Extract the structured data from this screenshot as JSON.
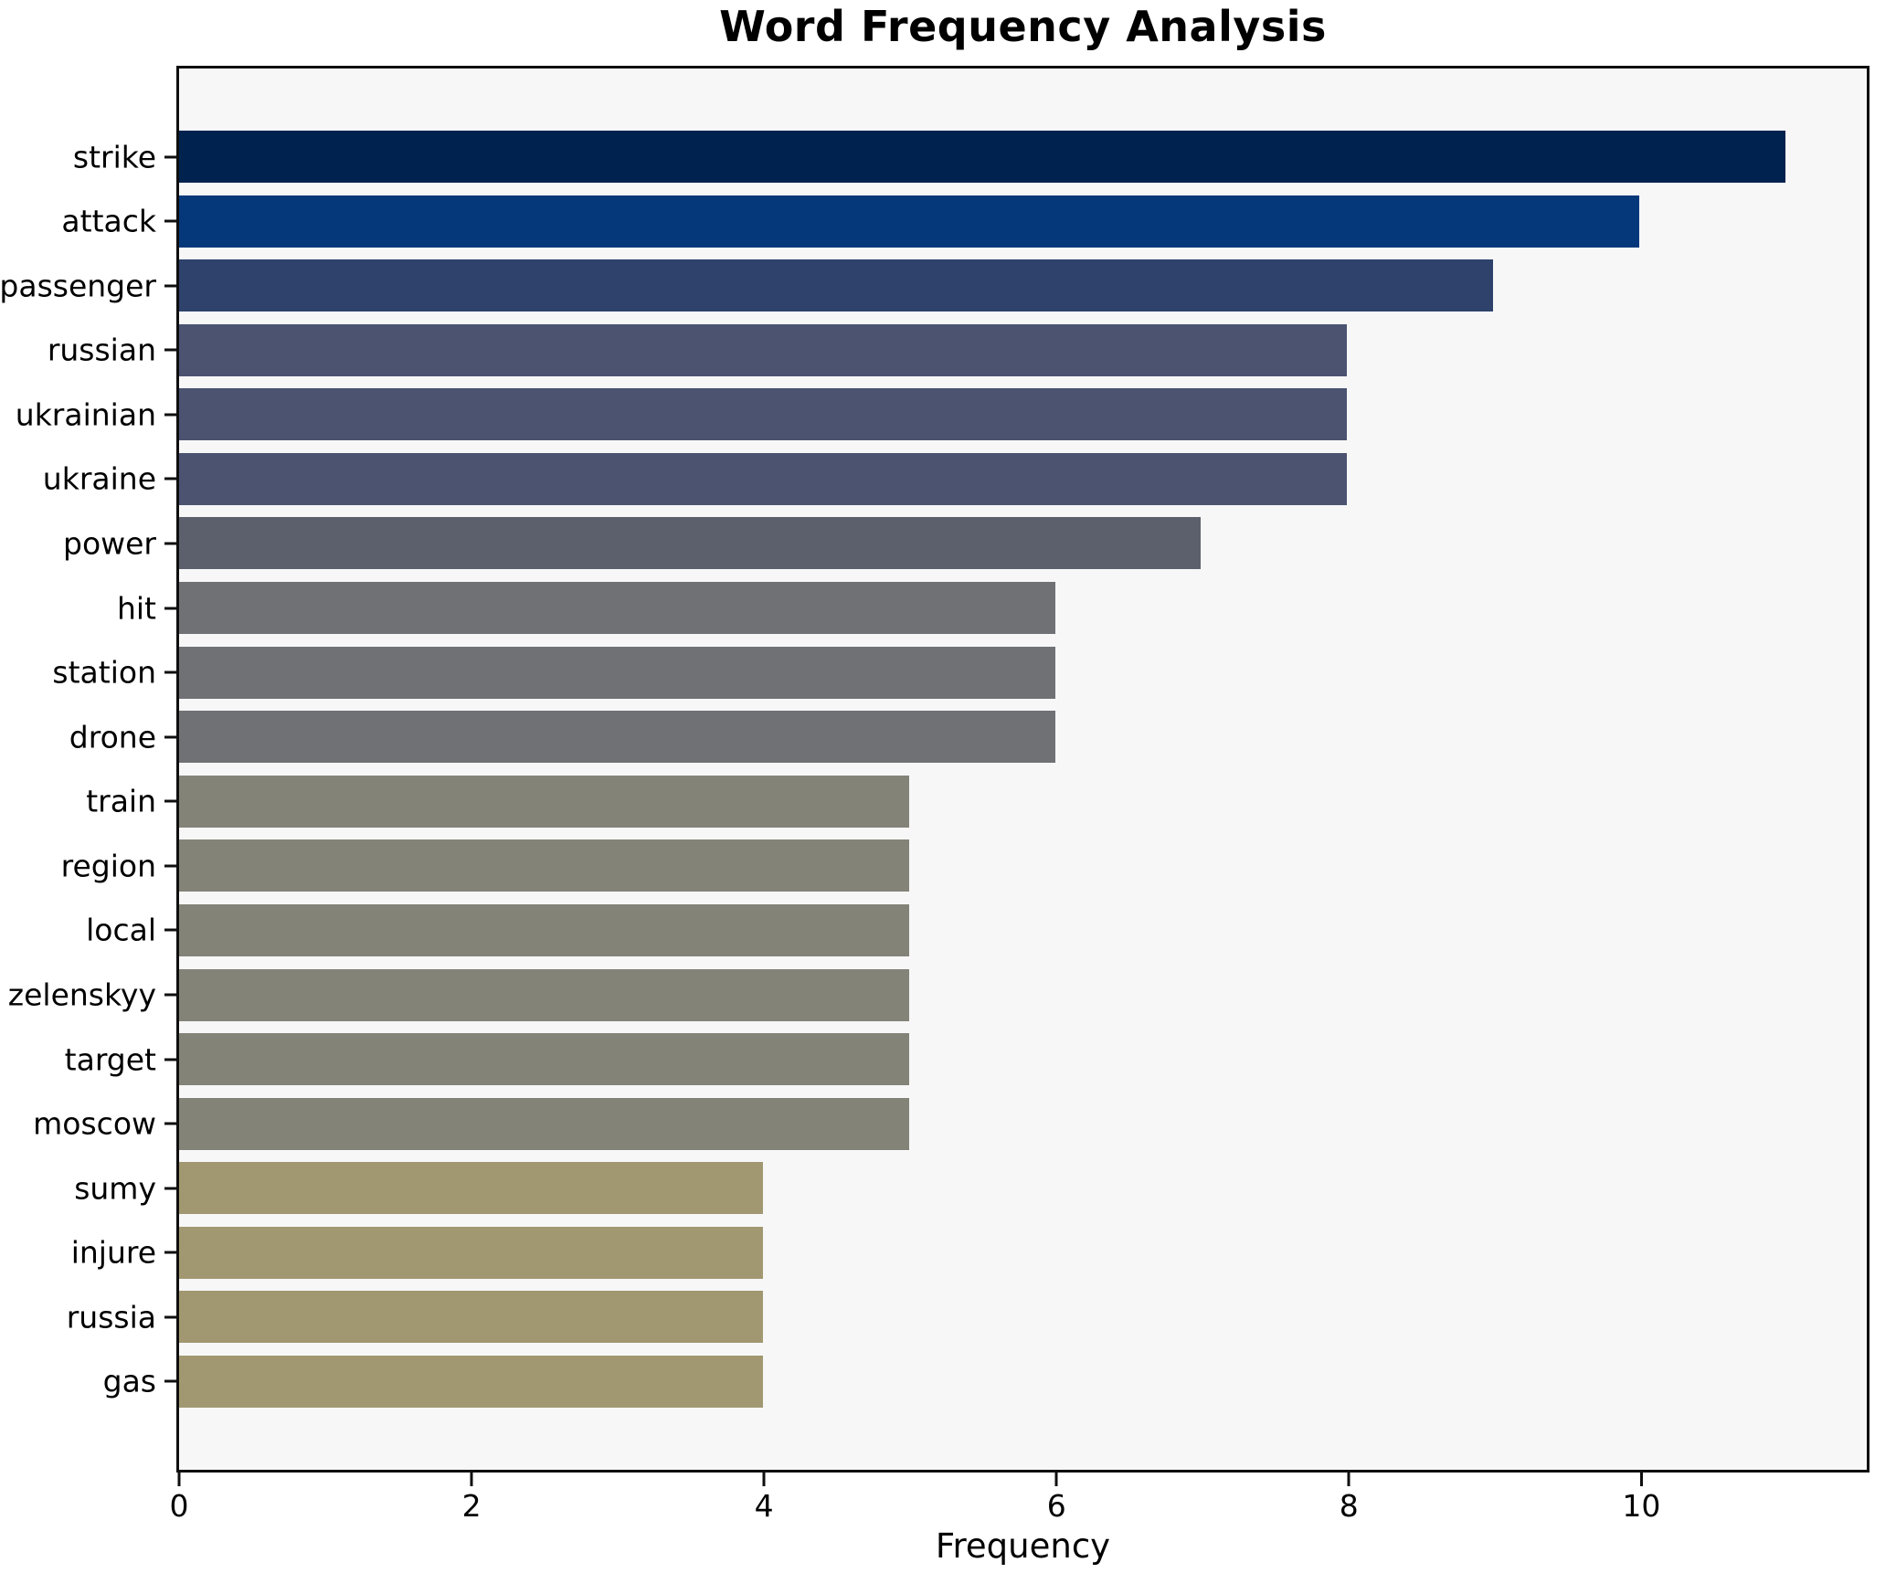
{
  "page": {
    "title": "Word Frequency Analysis"
  },
  "chart_data": {
    "type": "bar",
    "orientation": "horizontal",
    "title": "Word Frequency Analysis",
    "xlabel": "Frequency",
    "ylabel": "",
    "categories": [
      "strike",
      "attack",
      "passenger",
      "russian",
      "ukrainian",
      "ukraine",
      "power",
      "hit",
      "station",
      "drone",
      "train",
      "region",
      "local",
      "zelenskyy",
      "target",
      "moscow",
      "sumy",
      "injure",
      "russia",
      "gas"
    ],
    "values": [
      11,
      10,
      9,
      8,
      8,
      8,
      7,
      6,
      6,
      6,
      5,
      5,
      5,
      5,
      5,
      5,
      4,
      4,
      4,
      4
    ],
    "bar_colors": [
      "#00224e",
      "#04387a",
      "#2f426c",
      "#4b5371",
      "#4b5371",
      "#4b5371",
      "#5b606c",
      "#6f7174",
      "#6f7174",
      "#6f7174",
      "#848378",
      "#848378",
      "#848378",
      "#848378",
      "#848378",
      "#848378",
      "#a19872",
      "#a19872",
      "#a19872",
      "#a19872"
    ],
    "xticks": [
      0,
      2,
      4,
      6,
      8,
      10
    ],
    "xlim": [
      0,
      11.56
    ],
    "grid": false,
    "plot_background": "#f7f7f8",
    "figure_background": "#ffffff",
    "spine_color": "#0f0f0f"
  }
}
